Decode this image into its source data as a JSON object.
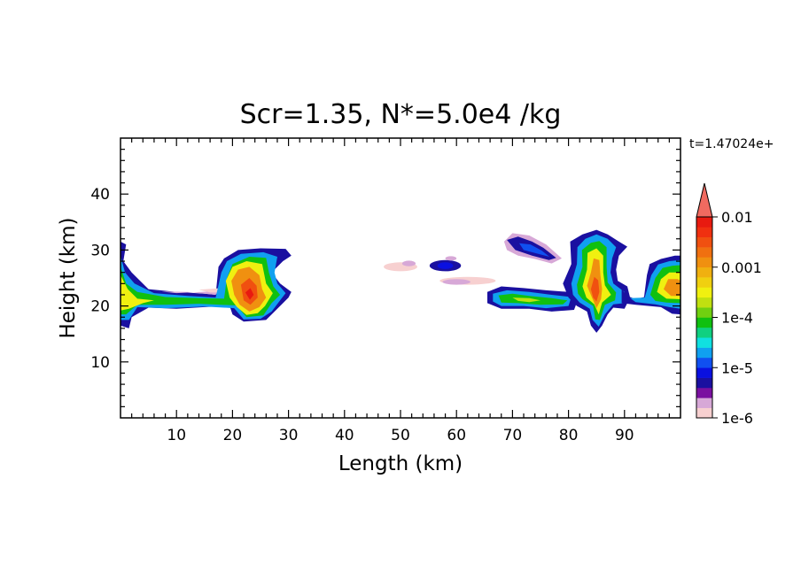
{
  "chart_data": {
    "type": "heatmap",
    "title": "Scr=1.35, N*=5.0e4 /kg",
    "time_label": "t=1.47024e+",
    "xlabel": "Length  (km)",
    "ylabel": "Height  (km)",
    "xlim": [
      0,
      100
    ],
    "ylim": [
      0,
      50
    ],
    "x_ticks": [
      "10",
      "20",
      "30",
      "40",
      "50",
      "60",
      "70",
      "80",
      "90"
    ],
    "y_ticks": [
      "10",
      "20",
      "30",
      "40"
    ],
    "grid": false,
    "colorbar": {
      "scale": "log",
      "range": [
        1e-06,
        0.01
      ],
      "tick_labels": [
        "1e-6",
        "1e-5",
        "1e-4",
        "0.001",
        "0.01"
      ],
      "extend": "max",
      "colors": [
        "#f7d0d0",
        "#d7a8d7",
        "#7a10a0",
        "#1a10a0",
        "#0a10e0",
        "#1050f0",
        "#10a0f0",
        "#10e0e0",
        "#10d080",
        "#10c010",
        "#70d010",
        "#c0e010",
        "#f0f010",
        "#f0d010",
        "#f0b010",
        "#f09010",
        "#f07010",
        "#f05010",
        "#f03010",
        "#e81a10",
        "#f06a60"
      ]
    },
    "regions": [
      {
        "name": "left-edge-layer",
        "x": [
          0,
          15
        ],
        "y": [
          17,
          31
        ],
        "max_level": "1e-4 to 0.001"
      },
      {
        "name": "cell-near-23km",
        "x": [
          15,
          32
        ],
        "y": [
          17,
          30
        ],
        "max_level": "0.001 to 0.01"
      },
      {
        "name": "faint-patch-50km",
        "x": [
          47,
          53
        ],
        "y": [
          26,
          28
        ],
        "max_level": "1e-6"
      },
      {
        "name": "blue-patch-58km",
        "x": [
          54,
          62
        ],
        "y": [
          26,
          29
        ],
        "max_level": "1e-5"
      },
      {
        "name": "thin-layer-62km",
        "x": [
          58,
          68
        ],
        "y": [
          23,
          26
        ],
        "max_level": "1e-6 to 1e-5"
      },
      {
        "name": "patch-73km",
        "x": [
          68,
          79
        ],
        "y": [
          28,
          33
        ],
        "max_level": "1e-5"
      },
      {
        "name": "layer-70-80km",
        "x": [
          65,
          82
        ],
        "y": [
          19,
          24
        ],
        "max_level": "1e-4"
      },
      {
        "name": "cell-near-85km",
        "x": [
          80,
          91
        ],
        "y": [
          15,
          33
        ],
        "max_level": "0.001 to 0.01"
      },
      {
        "name": "cell-near-97km",
        "x": [
          90,
          100
        ],
        "y": [
          19,
          29
        ],
        "max_level": "0.001"
      }
    ]
  }
}
